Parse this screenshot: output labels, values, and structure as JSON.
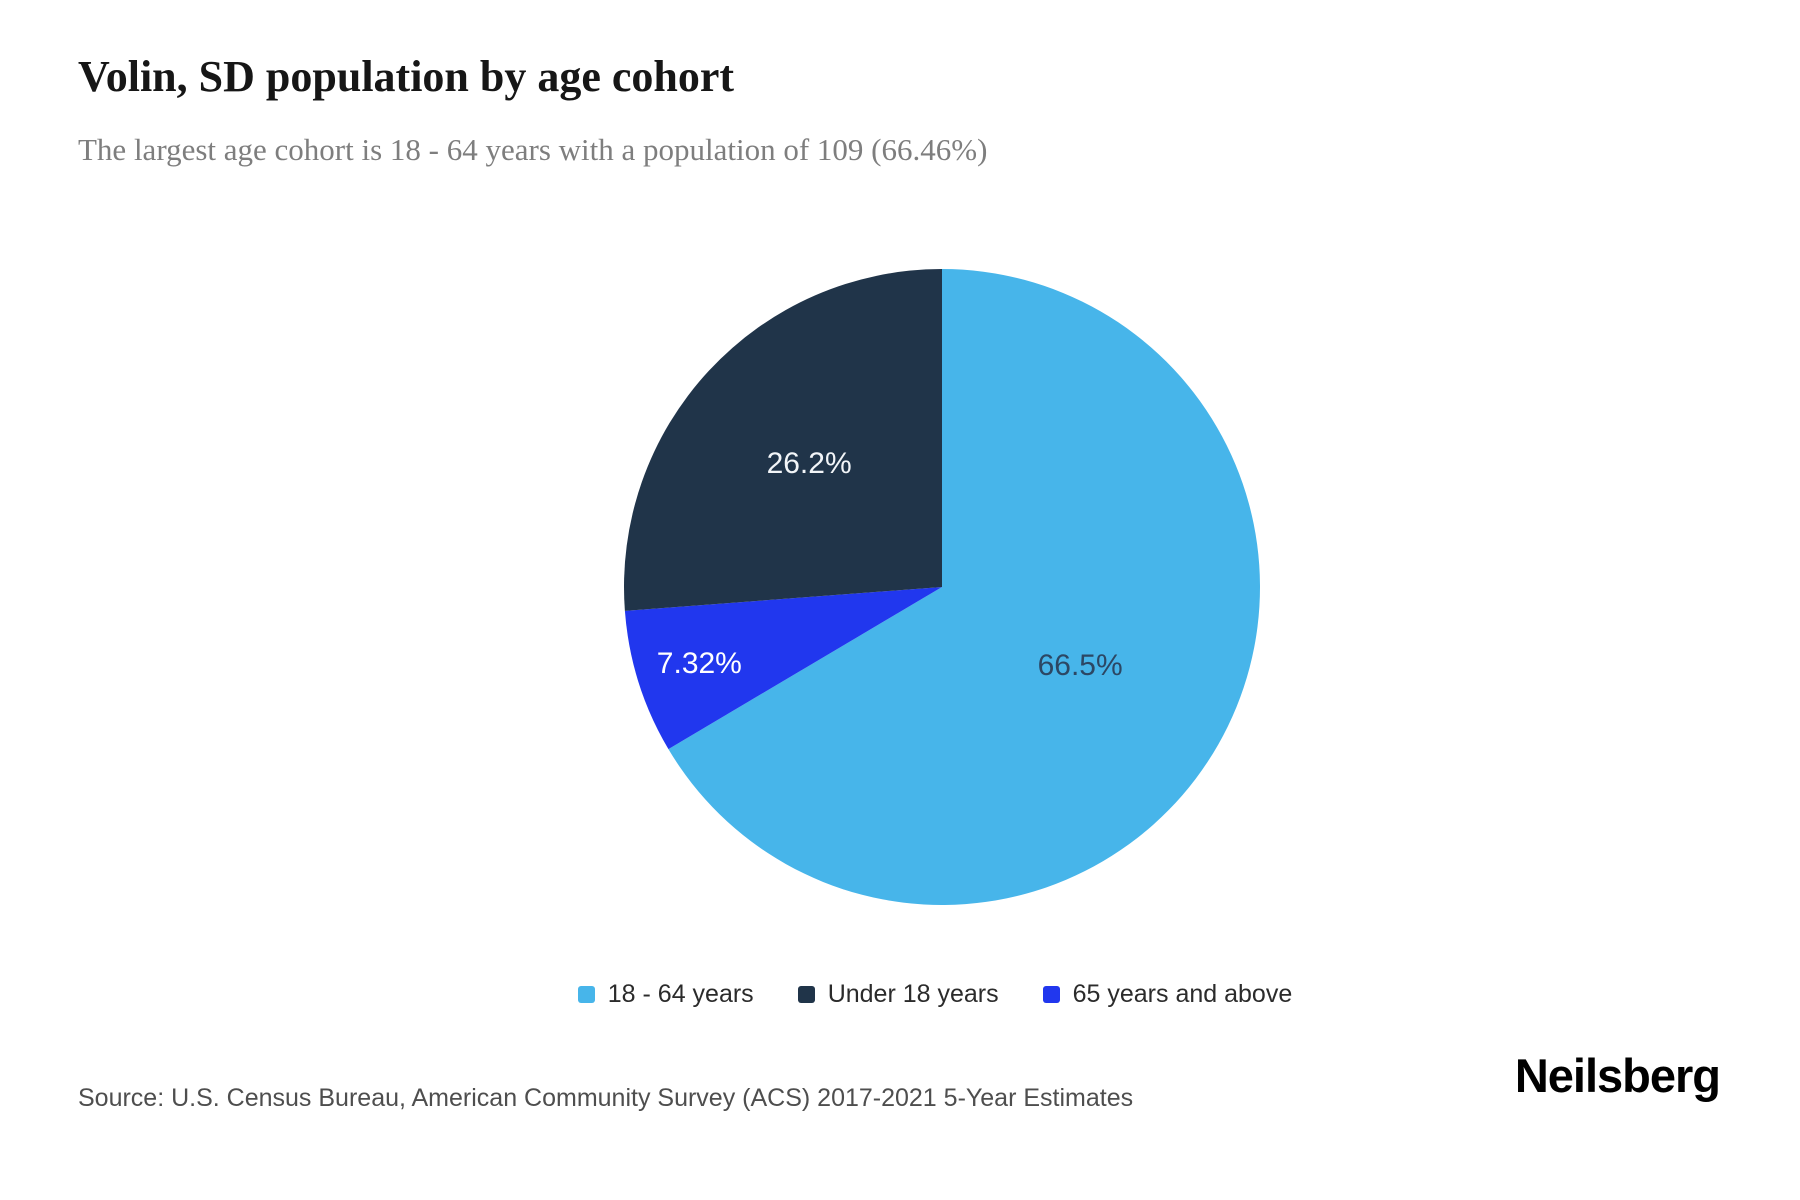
{
  "header": {
    "title": "Volin, SD population by age cohort",
    "subtitle": "The largest age cohort is 18 - 64 years with a population of 109 (66.46%)"
  },
  "chart_data": {
    "type": "pie",
    "title": "Volin, SD population by age cohort",
    "unit": "%",
    "start_angle_deg": 0,
    "direction": "clockwise",
    "slices": [
      {
        "label": "18 - 64 years",
        "pct": 66.5,
        "pct_label": "66.5%",
        "population": 109,
        "color": "#47b5ea",
        "pct_label_color": "#2c4764",
        "label_radius_frac": 0.5
      },
      {
        "label": "65 years and above",
        "pct": 7.32,
        "pct_label": "7.32%",
        "color": "#2137ee",
        "pct_label_color": "#ffffff",
        "label_radius_frac": 0.8
      },
      {
        "label": "Under 18 years",
        "pct": 26.2,
        "pct_label": "26.2%",
        "color": "#203449",
        "pct_label_color": "#f2f5f8",
        "label_radius_frac": 0.57
      }
    ],
    "legend_position": "bottom"
  },
  "legend": [
    {
      "label": "18 - 64 years",
      "color": "#47b5ea"
    },
    {
      "label": "Under 18 years",
      "color": "#203449"
    },
    {
      "label": "65 years and above",
      "color": "#2137ee"
    }
  ],
  "footer": {
    "source": "Source: U.S. Census Bureau, American Community Survey (ACS) 2017-2021 5-Year Estimates",
    "brand": "Neilsberg"
  }
}
